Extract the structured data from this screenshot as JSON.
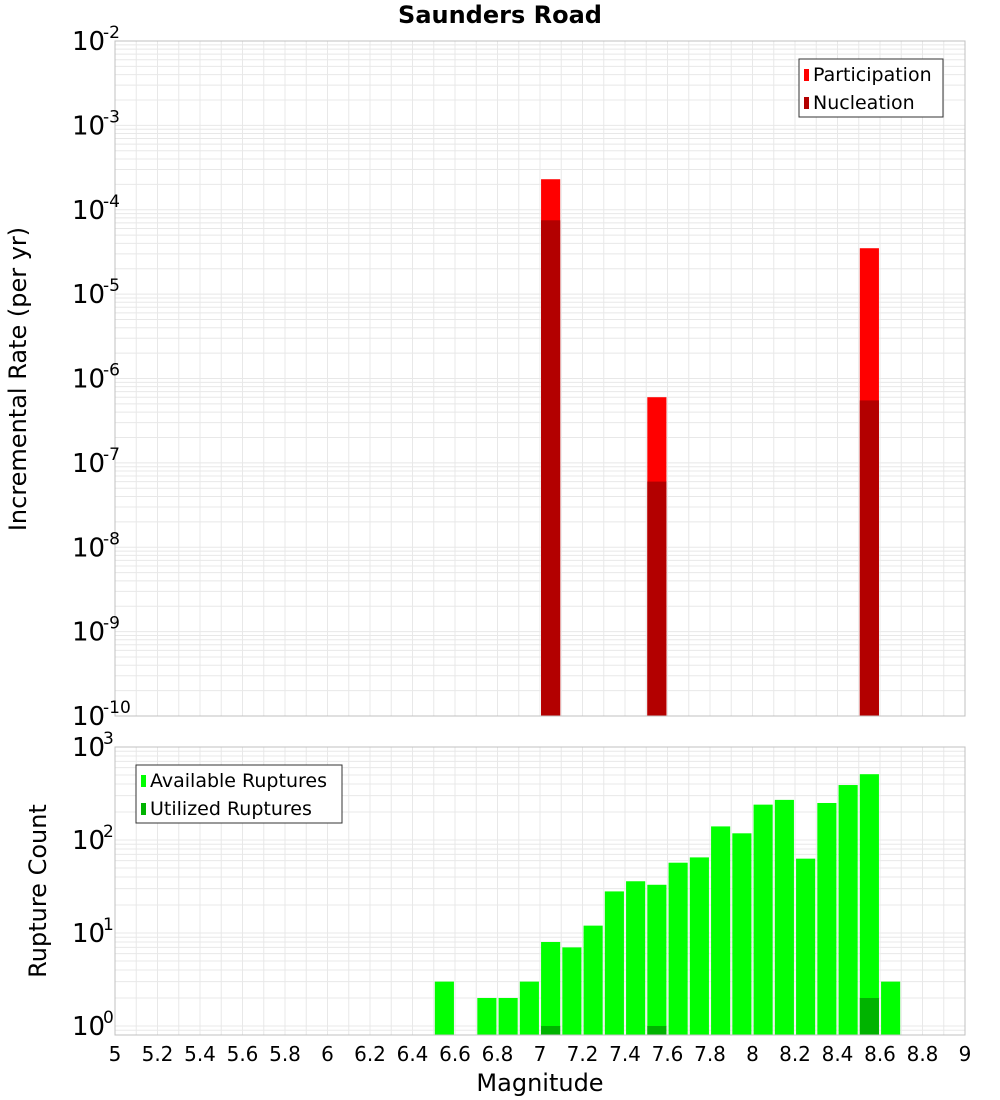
{
  "title": "Saunders Road",
  "colors": {
    "participation": "#ff0000",
    "nucleation": "#b30000",
    "available": "#00ff00",
    "utilized": "#00b300",
    "grid": "#e8e8e8",
    "frame": "#c0c0c0"
  },
  "chart_data": [
    {
      "type": "bar",
      "ylabel": "Incremental Rate (per yr)",
      "yscale": "log",
      "ylim": [
        1e-10,
        0.01
      ],
      "xlim": [
        5,
        9
      ],
      "grid": true,
      "legend_position": "top-right",
      "y_ticks": [
        {
          "base": "10",
          "exp": "-10"
        },
        {
          "base": "10",
          "exp": "-9"
        },
        {
          "base": "10",
          "exp": "-8"
        },
        {
          "base": "10",
          "exp": "-7"
        },
        {
          "base": "10",
          "exp": "-6"
        },
        {
          "base": "10",
          "exp": "-5"
        },
        {
          "base": "10",
          "exp": "-4"
        },
        {
          "base": "10",
          "exp": "-3"
        },
        {
          "base": "10",
          "exp": "-2"
        }
      ],
      "series": [
        {
          "name": "Participation",
          "x": [
            7.05,
            7.55,
            8.55
          ],
          "values": [
            0.00023,
            6e-07,
            3.5e-05
          ]
        },
        {
          "name": "Nucleation",
          "x": [
            7.05,
            7.55,
            8.55
          ],
          "values": [
            7.5e-05,
            6e-08,
            5.5e-07
          ]
        }
      ]
    },
    {
      "type": "bar",
      "ylabel": "Rupture Count",
      "xlabel": "Magnitude",
      "yscale": "log",
      "ylim": [
        0.8,
        1000
      ],
      "xlim": [
        5,
        9
      ],
      "grid": true,
      "legend_position": "top-left",
      "y_ticks": [
        {
          "base": "10",
          "exp": "0"
        },
        {
          "base": "10",
          "exp": "1"
        },
        {
          "base": "10",
          "exp": "2"
        },
        {
          "base": "10",
          "exp": "3"
        }
      ],
      "x_ticks": [
        "5",
        "5.2",
        "5.4",
        "5.6",
        "5.8",
        "6",
        "6.2",
        "6.4",
        "6.6",
        "6.8",
        "7",
        "7.2",
        "7.4",
        "7.6",
        "7.8",
        "8",
        "8.2",
        "8.4",
        "8.6",
        "8.8",
        "9"
      ],
      "series": [
        {
          "name": "Available Ruptures",
          "x": [
            6.55,
            6.75,
            6.85,
            6.95,
            7.05,
            7.15,
            7.25,
            7.35,
            7.45,
            7.55,
            7.65,
            7.75,
            7.85,
            7.95,
            8.05,
            8.15,
            8.25,
            8.35,
            8.45,
            8.55,
            8.65
          ],
          "values": [
            3,
            2,
            2,
            3,
            8,
            7,
            12,
            28,
            36,
            33,
            57,
            65,
            140,
            118,
            240,
            270,
            63,
            250,
            390,
            510,
            3
          ]
        },
        {
          "name": "Utilized Ruptures",
          "x": [
            7.05,
            7.55,
            8.55
          ],
          "values": [
            1,
            1,
            2
          ]
        }
      ]
    }
  ]
}
